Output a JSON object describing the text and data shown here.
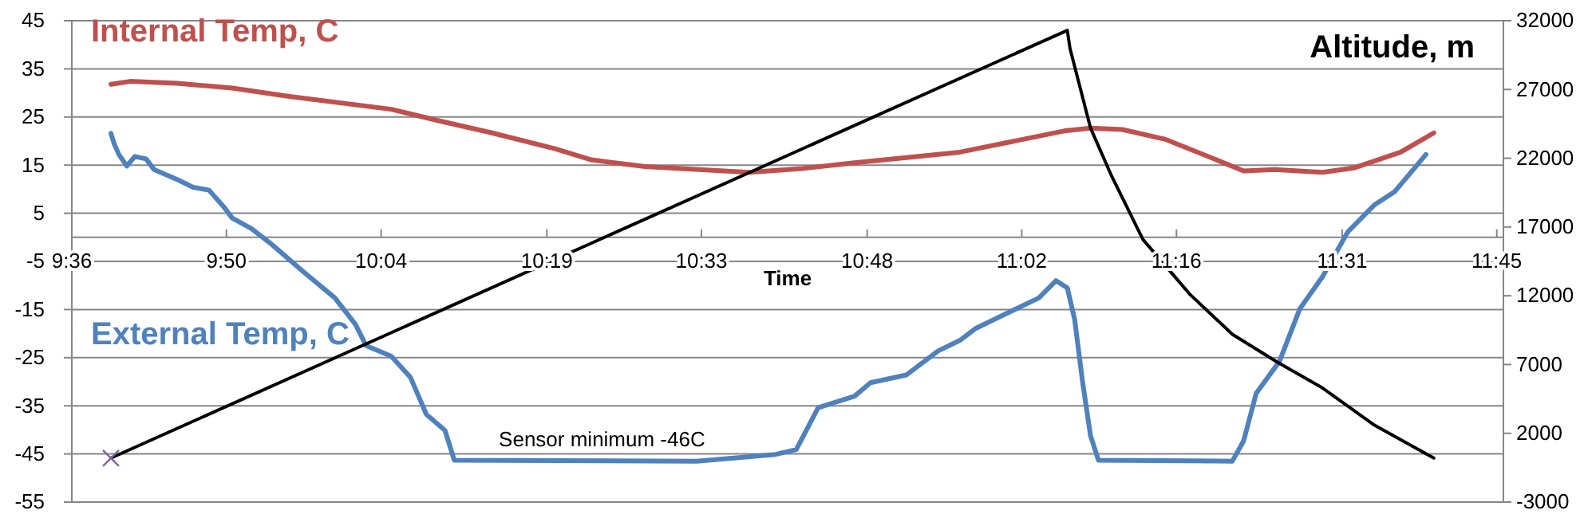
{
  "chart_data": {
    "type": "line",
    "xlabel": "Time",
    "xlim": [
      9.6,
      11.76
    ],
    "xticks": [
      {
        "value": 9.6,
        "label": "9:36"
      },
      {
        "value": 9.8333,
        "label": "9:50"
      },
      {
        "value": 10.0667,
        "label": "10:04"
      },
      {
        "value": 10.3167,
        "label": "10:19"
      },
      {
        "value": 10.55,
        "label": "10:33"
      },
      {
        "value": 10.8,
        "label": "10:48"
      },
      {
        "value": 11.0333,
        "label": "11:02"
      },
      {
        "value": 11.2667,
        "label": "11:16"
      },
      {
        "value": 11.5167,
        "label": "11:31"
      },
      {
        "value": 11.75,
        "label": "11:45"
      }
    ],
    "ylim": [
      -55,
      45
    ],
    "yticks": [
      -55,
      -45,
      -35,
      -25,
      -15,
      -5,
      5,
      15,
      25,
      35,
      45
    ],
    "y2lim": [
      -3000,
      32000
    ],
    "y2ticks": [
      -3000,
      2000,
      7000,
      12000,
      17000,
      22000,
      27000,
      32000
    ],
    "grid": "y",
    "series": [
      {
        "name": "Internal Temp, C",
        "color": "#c0504d",
        "x": [
          9.659,
          9.688,
          9.759,
          9.842,
          9.926,
          10.082,
          10.151,
          10.234,
          10.329,
          10.384,
          10.465,
          10.622,
          10.702,
          10.781,
          10.94,
          11.097,
          11.137,
          11.185,
          11.249,
          11.327,
          11.368,
          11.415,
          11.487,
          11.534,
          11.605,
          11.655
        ],
        "values": [
          31.8,
          32.4,
          32,
          31,
          29.3,
          26.6,
          24.3,
          21.7,
          18.4,
          16.1,
          14.7,
          13.5,
          14.3,
          15.5,
          17.7,
          22.1,
          22.7,
          22.4,
          20.4,
          16.1,
          13.8,
          14.1,
          13.5,
          14.4,
          17.7,
          21.7
        ]
      },
      {
        "name": "External Temp, C",
        "color": "#4f81bd",
        "x": [
          9.659,
          9.664,
          9.671,
          9.683,
          9.695,
          9.712,
          9.724,
          9.759,
          9.783,
          9.807,
          9.83,
          9.842,
          9.871,
          9.902,
          9.949,
          9.997,
          10.028,
          10.044,
          10.082,
          10.111,
          10.135,
          10.163,
          10.177,
          10.543,
          10.662,
          10.693,
          10.726,
          10.781,
          10.805,
          10.859,
          10.907,
          10.94,
          10.964,
          11.018,
          11.059,
          11.085,
          11.102,
          11.113,
          11.125,
          11.137,
          11.149,
          11.351,
          11.368,
          11.387,
          11.422,
          11.453,
          11.487,
          11.525,
          11.565,
          11.596,
          11.643
        ],
        "values": [
          21.6,
          19.4,
          17.2,
          14.8,
          16.8,
          16.3,
          14.1,
          12,
          10.4,
          9.8,
          6.2,
          4,
          1.8,
          -1.5,
          -7.1,
          -12.6,
          -18.1,
          -22.5,
          -24.7,
          -29.1,
          -36.8,
          -40.1,
          -46.3,
          -46.5,
          -45.1,
          -44.1,
          -35.4,
          -33,
          -30.2,
          -28.6,
          -23.6,
          -21.4,
          -18.9,
          -15.3,
          -12.6,
          -9,
          -10.5,
          -17,
          -30,
          -41.2,
          -46.3,
          -46.5,
          -42.3,
          -32.4,
          -25.8,
          -14.8,
          -8.2,
          1.1,
          6.7,
          9.5,
          17.2
        ]
      },
      {
        "name": "Altitude, m",
        "color": "#000000",
        "axis": "y2",
        "x": [
          9.659,
          11.102,
          11.106,
          11.137,
          11.168,
          11.216,
          11.287,
          11.351,
          11.418,
          11.487,
          11.565,
          11.655
        ],
        "values": [
          200,
          31300,
          30000,
          24200,
          20800,
          16100,
          12100,
          9200,
          7200,
          5300,
          2600,
          200
        ]
      },
      {
        "type": "scatter",
        "marker": "cross",
        "color": "#8064a2",
        "axis": "y2",
        "x": [
          9.659
        ],
        "values": [
          200
        ]
      }
    ],
    "annotations": [
      {
        "text": "Sensor minimum -46C",
        "x": 10.4,
        "y": -46
      }
    ]
  }
}
